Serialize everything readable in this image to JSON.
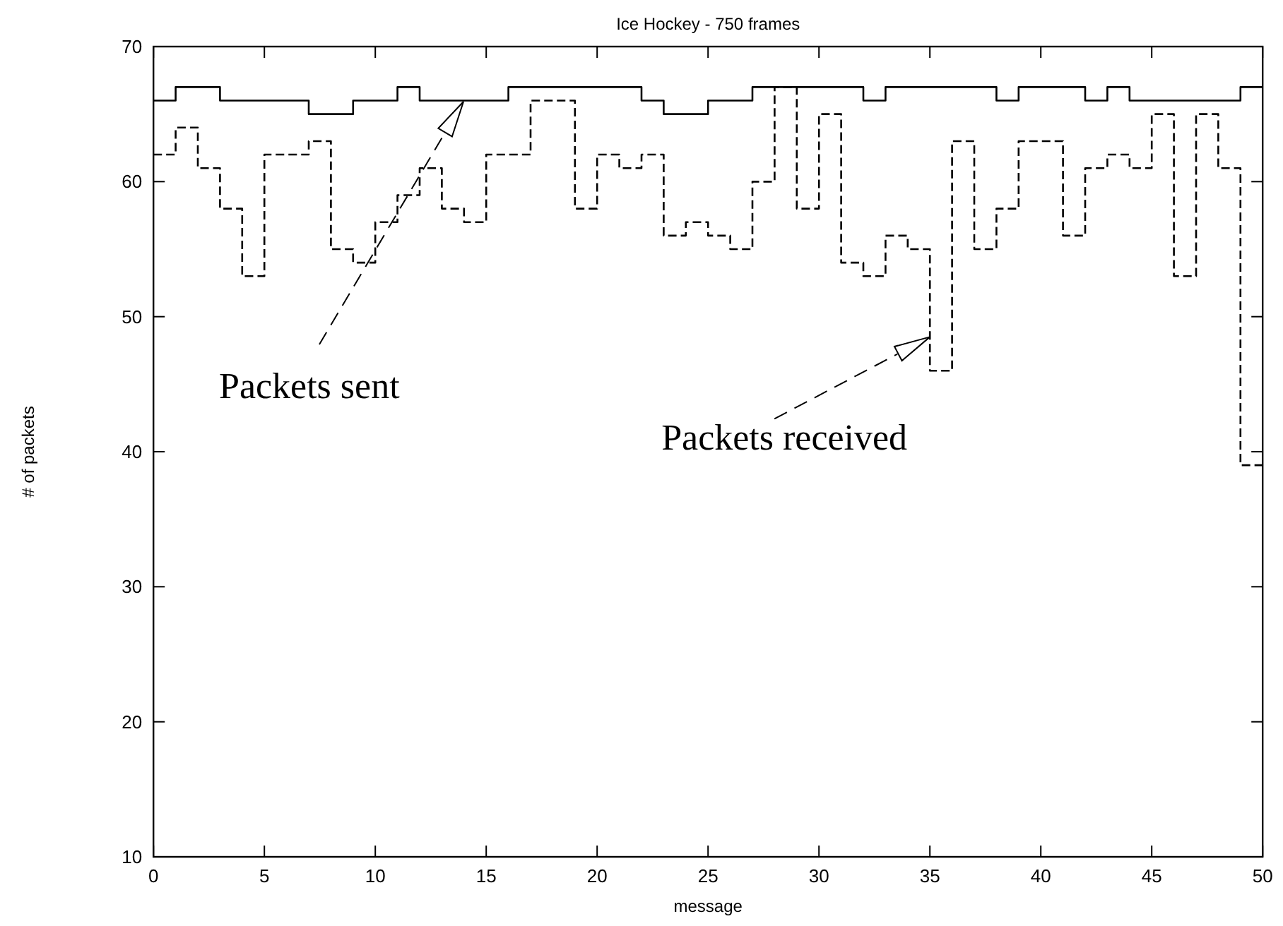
{
  "chart_data": {
    "type": "step",
    "title": "Ice Hockey - 750 frames",
    "xlabel": "message",
    "ylabel": "# of packets",
    "x": [
      0,
      1,
      2,
      3,
      4,
      5,
      6,
      7,
      8,
      9,
      10,
      11,
      12,
      13,
      14,
      15,
      16,
      17,
      18,
      19,
      20,
      21,
      22,
      23,
      24,
      25,
      26,
      27,
      28,
      29,
      30,
      31,
      32,
      33,
      34,
      35,
      36,
      37,
      38,
      39,
      40,
      41,
      42,
      43,
      44,
      45,
      46,
      47,
      48,
      49,
      50
    ],
    "series": [
      {
        "color": "#000000",
        "line_style": "solid",
        "values": [
          66,
          67,
          67,
          66,
          66,
          66,
          66,
          65,
          65,
          66,
          66,
          67,
          66,
          66,
          66,
          66,
          67,
          67,
          67,
          67,
          67,
          67,
          66,
          65,
          65,
          66,
          66,
          67,
          67,
          67,
          67,
          67,
          66,
          67,
          67,
          67,
          67,
          67,
          66,
          67,
          67,
          67,
          66,
          67,
          66,
          66,
          66,
          66,
          66,
          67,
          67
        ]
      },
      {
        "color": "#000000",
        "line_style": "dashed",
        "values": [
          62,
          64,
          61,
          58,
          53,
          62,
          62,
          63,
          55,
          54,
          57,
          59,
          61,
          58,
          57,
          62,
          62,
          66,
          66,
          58,
          62,
          61,
          62,
          56,
          57,
          56,
          55,
          60,
          67,
          58,
          65,
          54,
          53,
          56,
          55,
          46,
          63,
          55,
          58,
          63,
          63,
          56,
          61,
          62,
          61,
          65,
          53,
          65,
          61,
          39,
          39
        ]
      }
    ],
    "annotations": [
      "Packets sent",
      {
        "text": "Packets received",
        "x": 35,
        "y": 48.5
      }
    ],
    "xlim": [
      0,
      50
    ],
    "ylim": [
      10,
      70
    ],
    "xticks": [
      0,
      5,
      10,
      15,
      20,
      25,
      30,
      35,
      40,
      45,
      50
    ],
    "yticks": [
      10,
      20,
      30,
      40,
      50,
      60,
      70
    ],
    "grid": false
  }
}
